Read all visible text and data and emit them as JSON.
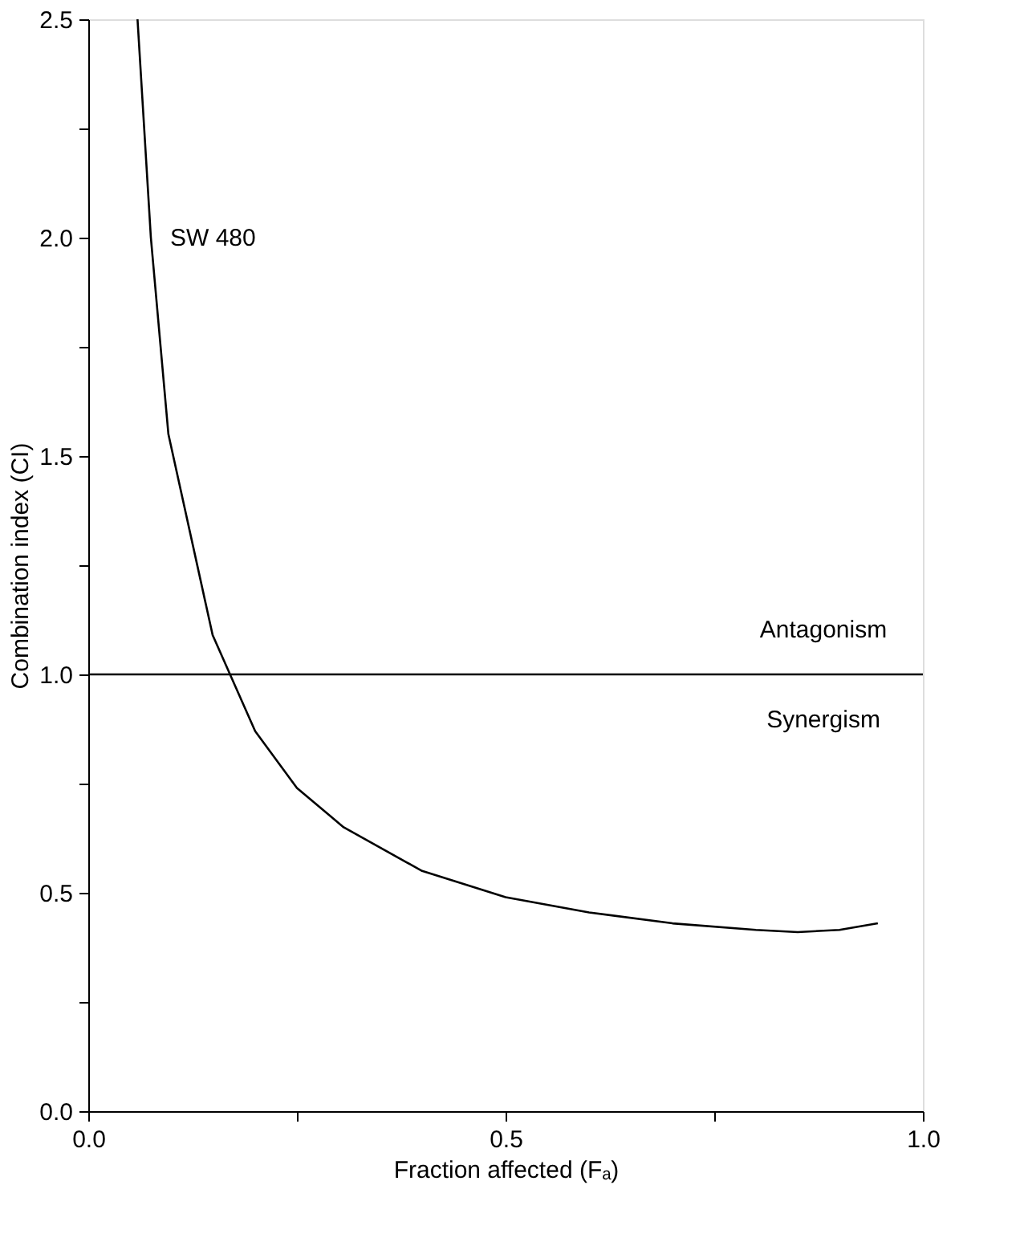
{
  "chart_data": {
    "type": "line",
    "xlabel": "Fraction affected (Fₐ)",
    "ylabel": "Combination index (CI)",
    "series": [
      {
        "color": "#000000",
        "x": [
          0.059,
          0.075,
          0.096,
          0.149,
          0.2,
          0.25,
          0.306,
          0.4,
          0.5,
          0.6,
          0.7,
          0.8,
          0.85,
          0.9,
          0.946
        ],
        "values": [
          2.5,
          2.0,
          1.55,
          1.09,
          0.87,
          0.74,
          0.65,
          0.55,
          0.49,
          0.455,
          0.43,
          0.415,
          0.41,
          0.415,
          0.43
        ]
      }
    ],
    "xlim": [
      0,
      1.0
    ],
    "ylim": [
      0,
      2.5
    ],
    "xticks": [
      {
        "value": 0,
        "label": "0.0"
      },
      {
        "value": 0.25,
        "label": null
      },
      {
        "value": 0.5,
        "label": "0.5"
      },
      {
        "value": 0.75,
        "label": null
      },
      {
        "value": 1.0,
        "label": "1.0"
      }
    ],
    "yticks": [
      {
        "value": 0,
        "label": "0.0"
      },
      {
        "value": 0.25,
        "label": null
      },
      {
        "value": 0.5,
        "label": "0.5"
      },
      {
        "value": 0.75,
        "label": null
      },
      {
        "value": 1.0,
        "label": "1.0"
      },
      {
        "value": 1.25,
        "label": null
      },
      {
        "value": 1.5,
        "label": "1.5"
      },
      {
        "value": 1.75,
        "label": null
      },
      {
        "value": 2.0,
        "label": "2.0"
      },
      {
        "value": 2.25,
        "label": null
      },
      {
        "value": 2.5,
        "label": "2.5"
      }
    ],
    "ref_lines": [
      {
        "axis": "y",
        "value": 1.0,
        "color": "#000000"
      }
    ],
    "annotations": [
      "SW 480",
      "Antagonism",
      "Synergism"
    ],
    "grid": false,
    "marker": "none",
    "line_style": "solid"
  }
}
